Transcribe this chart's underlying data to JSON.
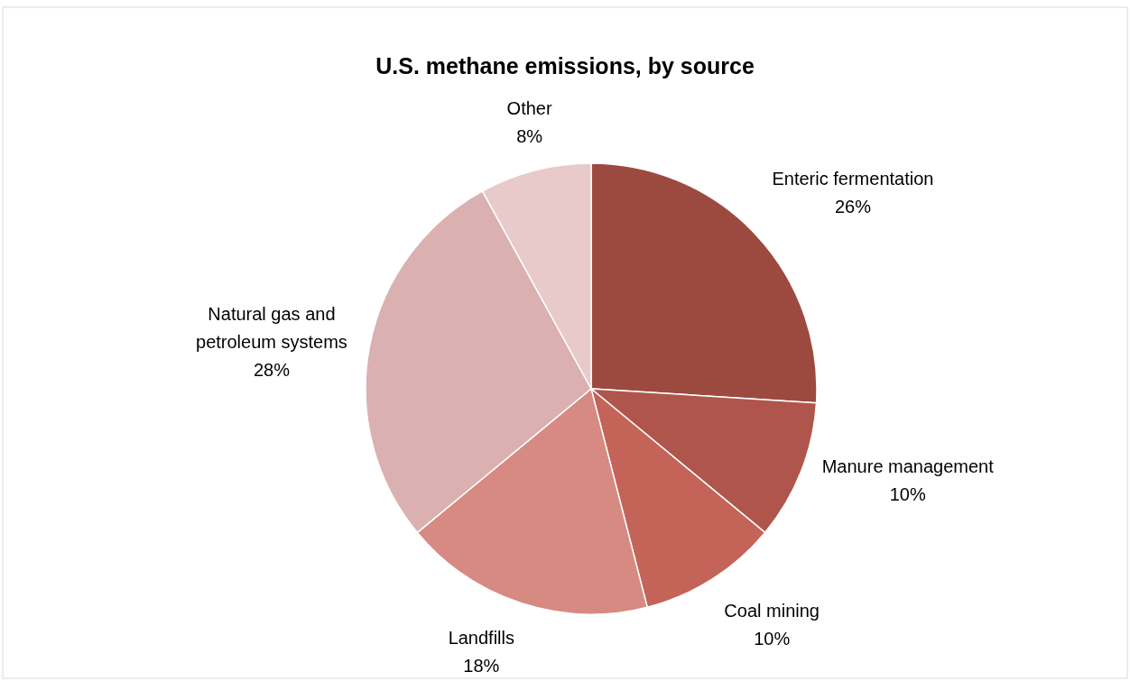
{
  "chart_data": {
    "type": "pie",
    "title": "U.S. methane emissions, by source",
    "categories": [
      "Enteric fermentation",
      "Manure management",
      "Coal mining",
      "Landfills",
      "Natural gas and petroleum systems",
      "Other"
    ],
    "values": [
      26,
      10,
      10,
      18,
      28,
      8
    ],
    "colors": [
      "#9c4a40",
      "#b0554b",
      "#c46358",
      "#d68a82",
      "#dab1b0",
      "#e8cacb"
    ],
    "value_labels": [
      "26%",
      "10%",
      "10%",
      "18%",
      "28%",
      "8%"
    ]
  }
}
